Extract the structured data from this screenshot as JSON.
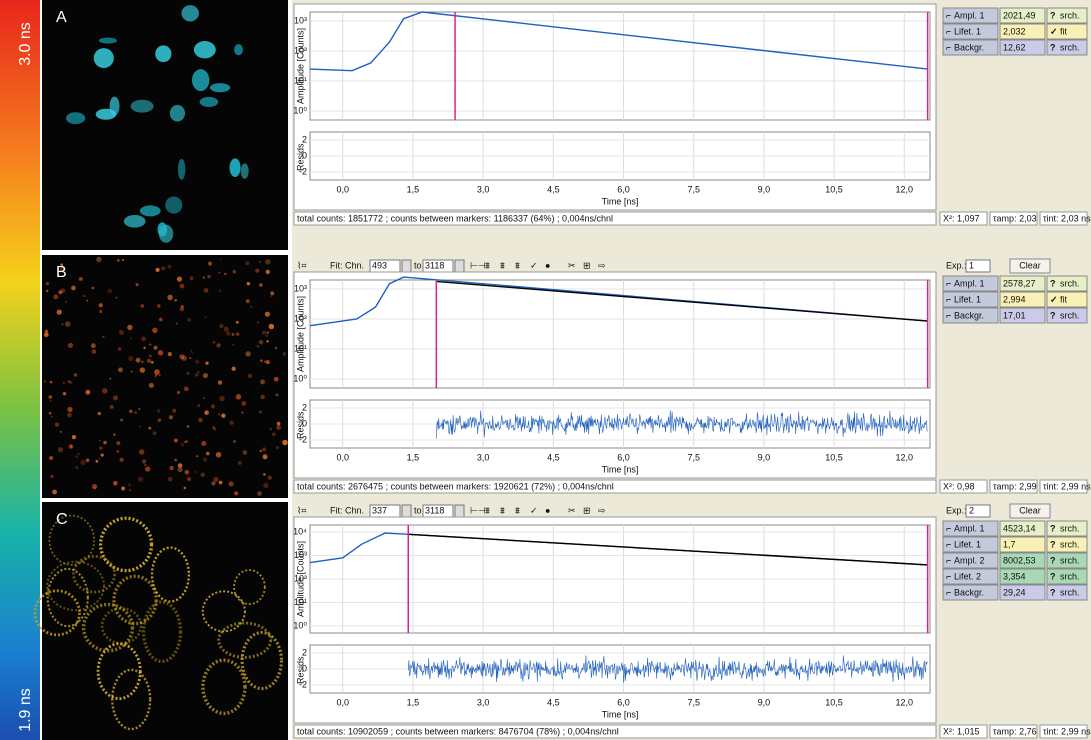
{
  "colorbar": {
    "top_label": "3.0 ns",
    "bottom_label": "1.9 ns"
  },
  "axis": {
    "xlabel": "Time [ns]",
    "ylabel": "Amplitude [Counts]",
    "resid_label": "Resids.",
    "xlim": [
      -0.7,
      12.55
    ],
    "xticks": [
      {
        "value": 0,
        "label": "0,0"
      },
      {
        "value": 1.5,
        "label": "1,5"
      },
      {
        "value": 3,
        "label": "3,0"
      },
      {
        "value": 4.5,
        "label": "4,5"
      },
      {
        "value": 6,
        "label": "6,0"
      },
      {
        "value": 7.5,
        "label": "7,5"
      },
      {
        "value": 9,
        "label": "9,0"
      },
      {
        "value": 10.5,
        "label": "10,5"
      },
      {
        "value": 12,
        "label": "12,0"
      }
    ],
    "resid_ylim": [
      -3,
      3
    ],
    "resid_yticks": [
      2,
      0,
      -2
    ],
    "decay_color": "#1f5fbf",
    "fit_color": "#000000",
    "marker_color": "#e0208a"
  },
  "panels": [
    {
      "label": "A",
      "ylim": [
        0.5,
        2000
      ],
      "yticks": [
        {
          "value": 1,
          "label": "10⁰"
        },
        {
          "value": 10,
          "label": "10¹"
        },
        {
          "value": 100,
          "label": "10²"
        },
        {
          "value": 1000,
          "label": "10³"
        }
      ],
      "decay": {
        "x": [
          -0.7,
          0.2,
          0.6,
          1.0,
          1.3,
          1.7,
          12.5
        ],
        "y": [
          25,
          22,
          40,
          200,
          1200,
          2000,
          25
        ]
      },
      "markers": [
        2.4,
        12.5
      ],
      "status": "total counts: 1851772 ; counts between markers: 1186337 (64%) ; 0,004ns/chnl",
      "stats": [
        "X²: 1,097",
        "τamp: 2,03 ns",
        "τint: 2,03 ns"
      ],
      "params": [
        {
          "name": "Ampl. 1",
          "value": "2021,49",
          "status": "srch.",
          "color": "#e6efc8"
        },
        {
          "name": "Lifet. 1",
          "value": "2,032",
          "status": "fit",
          "color": "#f8f0b4"
        },
        {
          "name": "Backgr.",
          "value": "12,62",
          "status": "srch.",
          "color": "#c9cbe8"
        }
      ]
    },
    {
      "label": "B",
      "fit_info": {
        "from_label": "Fit: Chn.",
        "from": "493",
        "to_label": "to",
        "to": "3118",
        "exp_label": "Exp.:",
        "exp": "1",
        "clear": "Clear"
      },
      "ylim": [
        0.5,
        2000
      ],
      "yticks": [
        {
          "value": 1,
          "label": "10⁰"
        },
        {
          "value": 10,
          "label": "10¹"
        },
        {
          "value": 100,
          "label": "10²"
        },
        {
          "value": 1000,
          "label": "10³"
        }
      ],
      "decay": {
        "x": [
          -0.7,
          0.3,
          0.7,
          1.0,
          1.3,
          12.5
        ],
        "y": [
          60,
          100,
          250,
          1500,
          2500,
          85
        ]
      },
      "fit": {
        "x": [
          2.0,
          12.5
        ],
        "y": [
          1800,
          85
        ]
      },
      "markers": [
        2.0,
        12.5
      ],
      "residual_span": [
        2.0,
        12.5
      ],
      "status": "total counts: 2676475 ; counts between markers: 1920621 (72%) ; 0,004ns/chnl",
      "stats": [
        "X²: 0,98",
        "τamp: 2,99 ns",
        "τint: 2,99 ns"
      ],
      "params": [
        {
          "name": "Ampl. 1",
          "value": "2578,27",
          "status": "srch.",
          "color": "#e6efc8"
        },
        {
          "name": "Lifet. 1",
          "value": "2,994",
          "status": "fit",
          "color": "#f8f0b4"
        },
        {
          "name": "Backgr.",
          "value": "17,01",
          "status": "srch.",
          "color": "#c9cbe8"
        }
      ]
    },
    {
      "label": "C",
      "fit_info": {
        "from_label": "Fit: Chn.",
        "from": "337",
        "to_label": "to",
        "to": "3118",
        "exp_label": "Exp.:",
        "exp": "2",
        "clear": "Clear"
      },
      "ylim": [
        0.5,
        20000
      ],
      "yticks": [
        {
          "value": 1,
          "label": "10⁰"
        },
        {
          "value": 10,
          "label": "10¹"
        },
        {
          "value": 100,
          "label": "10²"
        },
        {
          "value": 1000,
          "label": "10³"
        },
        {
          "value": 10000,
          "label": "10⁴"
        }
      ],
      "decay": {
        "x": [
          -0.7,
          0.0,
          0.4,
          0.9,
          1.4,
          12.5
        ],
        "y": [
          500,
          800,
          3000,
          9000,
          8000,
          400
        ]
      },
      "fit": {
        "x": [
          1.4,
          12.5
        ],
        "y": [
          8000,
          400
        ]
      },
      "markers": [
        1.4,
        12.5
      ],
      "residual_span": [
        1.4,
        12.5
      ],
      "status": "total counts: 10902059 ; counts between markers: 8476704 (78%) ; 0,004ns/chnl",
      "stats": [
        "X²: 1,015",
        "τamp: 2,76 ns",
        "τint: 2,99 ns"
      ],
      "params": [
        {
          "name": "Ampl. 1",
          "value": "4523,14",
          "status": "srch.",
          "color": "#e6efc8"
        },
        {
          "name": "Lifet. 1",
          "value": "1,7",
          "status": "srch.",
          "color": "#f8f0b4"
        },
        {
          "name": "Ampl. 2",
          "value": "8002,53",
          "status": "srch.",
          "color": "#a9d9b4"
        },
        {
          "name": "Lifet. 2",
          "value": "3,354",
          "status": "srch.",
          "color": "#a9d9b4"
        },
        {
          "name": "Backgr.",
          "value": "29,24",
          "status": "srch.",
          "color": "#c9cbe8"
        }
      ]
    }
  ]
}
